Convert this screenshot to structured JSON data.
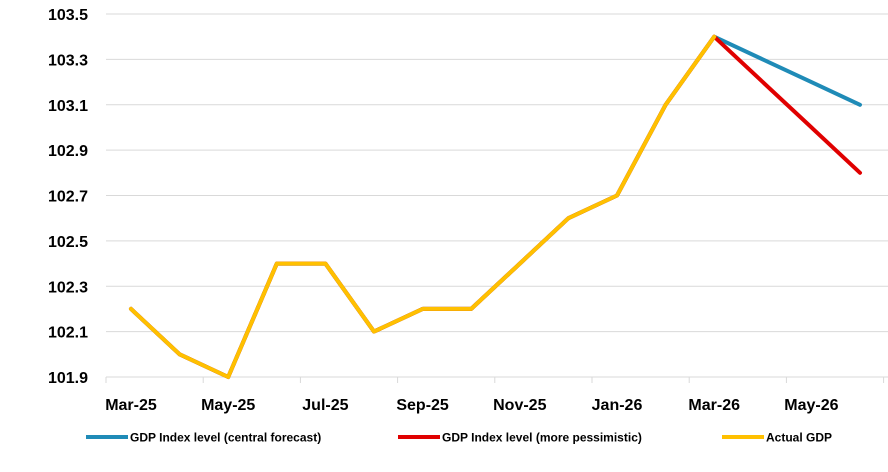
{
  "chart_data": {
    "type": "line",
    "title": "",
    "xlabel": "",
    "ylabel": "",
    "ylim": [
      101.9,
      103.5
    ],
    "yticks": [
      "101.9",
      "102.1",
      "102.3",
      "102.5",
      "102.7",
      "102.9",
      "103.1",
      "103.3",
      "103.5"
    ],
    "grid": "horizontal",
    "legend_position": "bottom",
    "categories": [
      "Mar-25",
      "Apr-25",
      "May-25",
      "Jun-25",
      "Jul-25",
      "Aug-25",
      "Sep-25",
      "Oct-25",
      "Nov-25",
      "Dec-25",
      "Jan-26",
      "Feb-26",
      "Mar-26",
      "Apr-26",
      "May-26",
      "Jun-26"
    ],
    "xtick_labels": [
      "Mar-25",
      "May-25",
      "Jul-25",
      "Sep-25",
      "Nov-25",
      "Jan-26",
      "Mar-26",
      "May-26"
    ],
    "series": [
      {
        "name": "GDP Index level (central forecast)",
        "color": "#1F8BB7",
        "values": [
          102.2,
          102.0,
          101.9,
          102.4,
          102.4,
          102.1,
          102.2,
          102.2,
          102.4,
          102.6,
          102.7,
          103.1,
          103.4,
          103.3,
          103.2,
          103.1
        ]
      },
      {
        "name": "GDP Index level (more pessimistic)",
        "color": "#E00000",
        "values": [
          102.2,
          102.0,
          101.9,
          102.4,
          102.4,
          102.1,
          102.2,
          102.2,
          102.4,
          102.6,
          102.7,
          103.1,
          103.4,
          103.2,
          103.0,
          102.8
        ]
      },
      {
        "name": "Actual GDP",
        "color": "#FFC000",
        "values": [
          102.2,
          102.0,
          101.9,
          102.4,
          102.4,
          102.1,
          102.2,
          102.2,
          102.4,
          102.6,
          102.7,
          103.1,
          103.4,
          null,
          null,
          null
        ]
      }
    ]
  }
}
